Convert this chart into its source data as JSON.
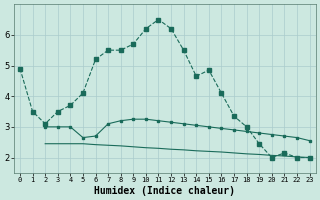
{
  "title": "",
  "xlabel": "Humidex (Indice chaleur)",
  "bg_color": "#cce8e0",
  "grid_color": "#aacccc",
  "line_color": "#1a6b5a",
  "xlim": [
    -0.5,
    23.5
  ],
  "ylim": [
    1.5,
    7.0
  ],
  "yticks": [
    2,
    3,
    4,
    5,
    6
  ],
  "xticks": [
    0,
    1,
    2,
    3,
    4,
    5,
    6,
    7,
    8,
    9,
    10,
    11,
    12,
    13,
    14,
    15,
    16,
    17,
    18,
    19,
    20,
    21,
    22,
    23
  ],
  "line1_x": [
    0,
    1,
    2,
    3,
    4,
    5,
    6,
    7,
    8,
    9,
    10,
    11,
    12,
    13,
    14,
    15,
    16,
    17,
    18,
    19,
    20,
    21,
    22,
    23
  ],
  "line1_y": [
    4.9,
    3.5,
    3.1,
    3.5,
    3.7,
    4.1,
    5.2,
    5.5,
    5.5,
    5.7,
    6.2,
    6.5,
    6.2,
    5.5,
    4.65,
    4.85,
    4.1,
    3.35,
    3.0,
    2.45,
    2.0,
    2.15,
    2.0,
    2.0
  ],
  "line2_x": [
    2,
    3,
    4,
    5,
    6,
    7,
    8,
    9,
    10,
    11,
    12,
    13,
    14,
    15,
    16,
    17,
    18,
    19,
    20,
    21,
    22,
    23
  ],
  "line2_y": [
    3.0,
    3.0,
    3.0,
    2.65,
    2.7,
    3.1,
    3.2,
    3.25,
    3.25,
    3.2,
    3.15,
    3.1,
    3.05,
    3.0,
    2.95,
    2.9,
    2.85,
    2.8,
    2.75,
    2.7,
    2.65,
    2.55
  ],
  "line3_x": [
    2,
    3,
    4,
    5,
    6,
    7,
    8,
    9,
    10,
    11,
    12,
    13,
    14,
    15,
    16,
    17,
    18,
    19,
    20,
    21,
    22,
    23
  ],
  "line3_y": [
    2.45,
    2.45,
    2.45,
    2.45,
    2.42,
    2.4,
    2.38,
    2.35,
    2.32,
    2.3,
    2.27,
    2.25,
    2.22,
    2.2,
    2.18,
    2.15,
    2.12,
    2.1,
    2.07,
    2.05,
    2.02,
    2.0
  ]
}
